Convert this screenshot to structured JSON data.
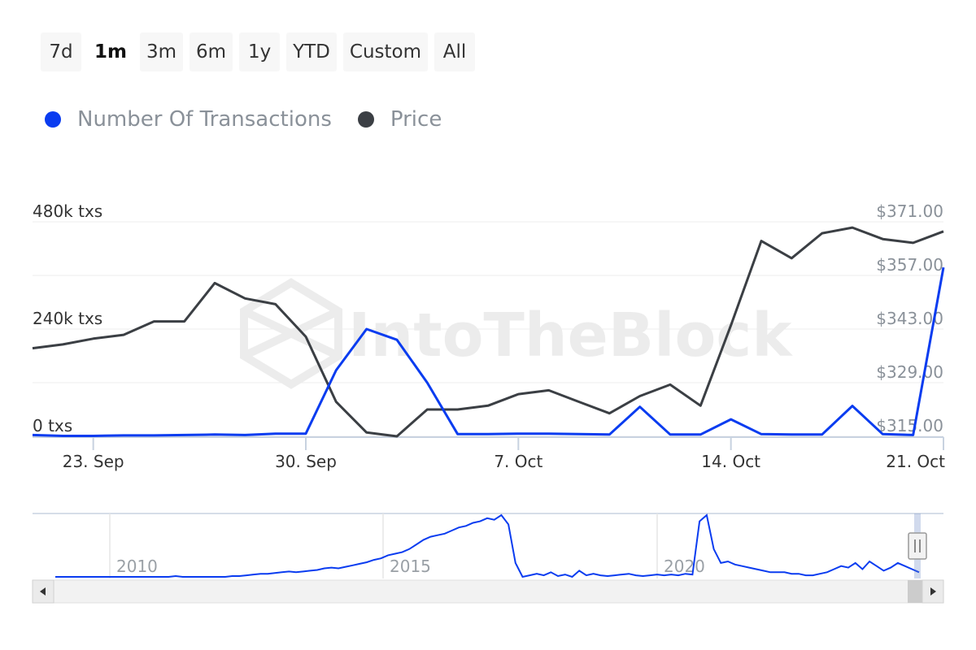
{
  "range_buttons": [
    "7d",
    "1m",
    "3m",
    "6m",
    "1y",
    "YTD",
    "Custom",
    "All"
  ],
  "active_range": "1m",
  "watermark": "IntoTheBlock",
  "colors": {
    "transactions": "#0a3cf0",
    "price": "#3b3f44",
    "axis": "#c8d2e0",
    "grid": "#ececec",
    "muted": "#8a9199"
  },
  "chart_data": {
    "type": "line",
    "x": [
      "2024-09-21",
      "2024-09-22",
      "2024-09-23",
      "2024-09-24",
      "2024-09-25",
      "2024-09-26",
      "2024-09-27",
      "2024-09-28",
      "2024-09-29",
      "2024-09-30",
      "2024-10-01",
      "2024-10-02",
      "2024-10-03",
      "2024-10-04",
      "2024-10-05",
      "2024-10-06",
      "2024-10-07",
      "2024-10-08",
      "2024-10-09",
      "2024-10-10",
      "2024-10-11",
      "2024-10-12",
      "2024-10-13",
      "2024-10-14",
      "2024-10-15",
      "2024-10-16",
      "2024-10-17",
      "2024-10-18",
      "2024-10-19",
      "2024-10-20",
      "2024-10-21"
    ],
    "xticks": [
      {
        "date": "2024-09-23",
        "label": "23. Sep"
      },
      {
        "date": "2024-09-30",
        "label": "30. Sep"
      },
      {
        "date": "2024-10-07",
        "label": "7. Oct"
      },
      {
        "date": "2024-10-14",
        "label": "14. Oct"
      },
      {
        "date": "2024-10-21",
        "label": "21. Oct"
      }
    ],
    "series": [
      {
        "name": "Number Of Transactions",
        "axis": "left",
        "values": [
          3000,
          1000,
          1000,
          2000,
          2000,
          3000,
          4000,
          3000,
          6000,
          6000,
          148000,
          240000,
          216000,
          120000,
          5000,
          5000,
          6000,
          6000,
          5000,
          4000,
          66000,
          4000,
          4000,
          38000,
          5000,
          4000,
          4000,
          68000,
          5000,
          3000,
          378000
        ]
      },
      {
        "name": "Price",
        "axis": "right",
        "values": [
          338.0,
          339.0,
          340.5,
          341.5,
          345.0,
          345.0,
          355.0,
          351.0,
          349.5,
          341.0,
          324.0,
          316.0,
          315.0,
          322.0,
          322.0,
          323.0,
          326.0,
          327.0,
          324.0,
          321.0,
          325.5,
          328.5,
          323.0,
          344.0,
          366.0,
          361.5,
          368.0,
          369.5,
          366.5,
          365.5,
          368.5
        ]
      }
    ],
    "y_left": {
      "ticks": [
        0,
        240000,
        480000
      ],
      "tick_labels": [
        "0 txs",
        "240k txs",
        "480k txs"
      ],
      "range": [
        0,
        480000
      ]
    },
    "y_right": {
      "ticks": [
        315,
        329,
        343,
        357,
        371
      ],
      "tick_labels": [
        "$315.00",
        "$329.00",
        "$343.00",
        "$357.00",
        "$371.00"
      ],
      "range": [
        315,
        371
      ]
    },
    "grid": true,
    "legend_placement": "top-left"
  },
  "navigator": {
    "year_labels": [
      "2010",
      "2015",
      "2020"
    ],
    "series": [
      0,
      0,
      0,
      0,
      0,
      0,
      0,
      0,
      0,
      0,
      0,
      0,
      0,
      0,
      0,
      0,
      0,
      1,
      0,
      0,
      0,
      0,
      0,
      0,
      0,
      1,
      1,
      2,
      3,
      4,
      4,
      5,
      6,
      7,
      6,
      7,
      8,
      9,
      11,
      12,
      11,
      13,
      15,
      17,
      19,
      22,
      24,
      28,
      30,
      32,
      36,
      42,
      48,
      52,
      54,
      56,
      60,
      64,
      66,
      70,
      72,
      76,
      74,
      80,
      68,
      18,
      0,
      2,
      4,
      2,
      6,
      1,
      3,
      0,
      8,
      2,
      4,
      2,
      1,
      2,
      3,
      4,
      2,
      1,
      2,
      3,
      2,
      3,
      2,
      4,
      3,
      72,
      80,
      36,
      18,
      20,
      16,
      14,
      12,
      10,
      8,
      6,
      6,
      6,
      4,
      4,
      2,
      2,
      4,
      6,
      10,
      14,
      12,
      18,
      10,
      20,
      14,
      8,
      12,
      18,
      14,
      10,
      6
    ]
  }
}
